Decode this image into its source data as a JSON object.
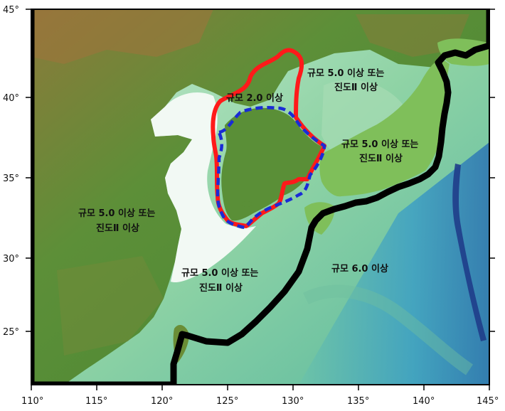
{
  "map": {
    "lon_ticks": [
      "110°",
      "115°",
      "120°",
      "125°",
      "130°",
      "135°",
      "140°",
      "145°"
    ],
    "lat_ticks": [
      "45°",
      "40°",
      "35°",
      "30°",
      "25°"
    ],
    "labels": {
      "north_korea": "규모 2.0 이상",
      "northeast_line1": "규모 5.0 이상 또는",
      "northeast_line2": "진도Ⅱ 이상",
      "japan_line1": "규모 5.0 이상 또는",
      "japan_line2": "진도Ⅱ 이상",
      "china_line1": "규모 5.0 이상 또는",
      "china_line2": "진도Ⅱ 이상",
      "ecs_line1": "규모 5.0 이상 또는",
      "ecs_line2": "진도Ⅱ 이상",
      "pacific": "규모 6.0 이상"
    },
    "colors": {
      "land_low": "#5c9a3c",
      "land_mid": "#8a8f3c",
      "land_high": "#9c6a3a",
      "shallow_sea": "#eaf6ee",
      "sea": "#9ed9b5",
      "deep_sea": "#3a8fbf",
      "trench": "#1f3d8a",
      "red_boundary": "#ff1a1a",
      "blue_boundary": "#1a2bd6",
      "black_boundary": "#000000"
    }
  }
}
